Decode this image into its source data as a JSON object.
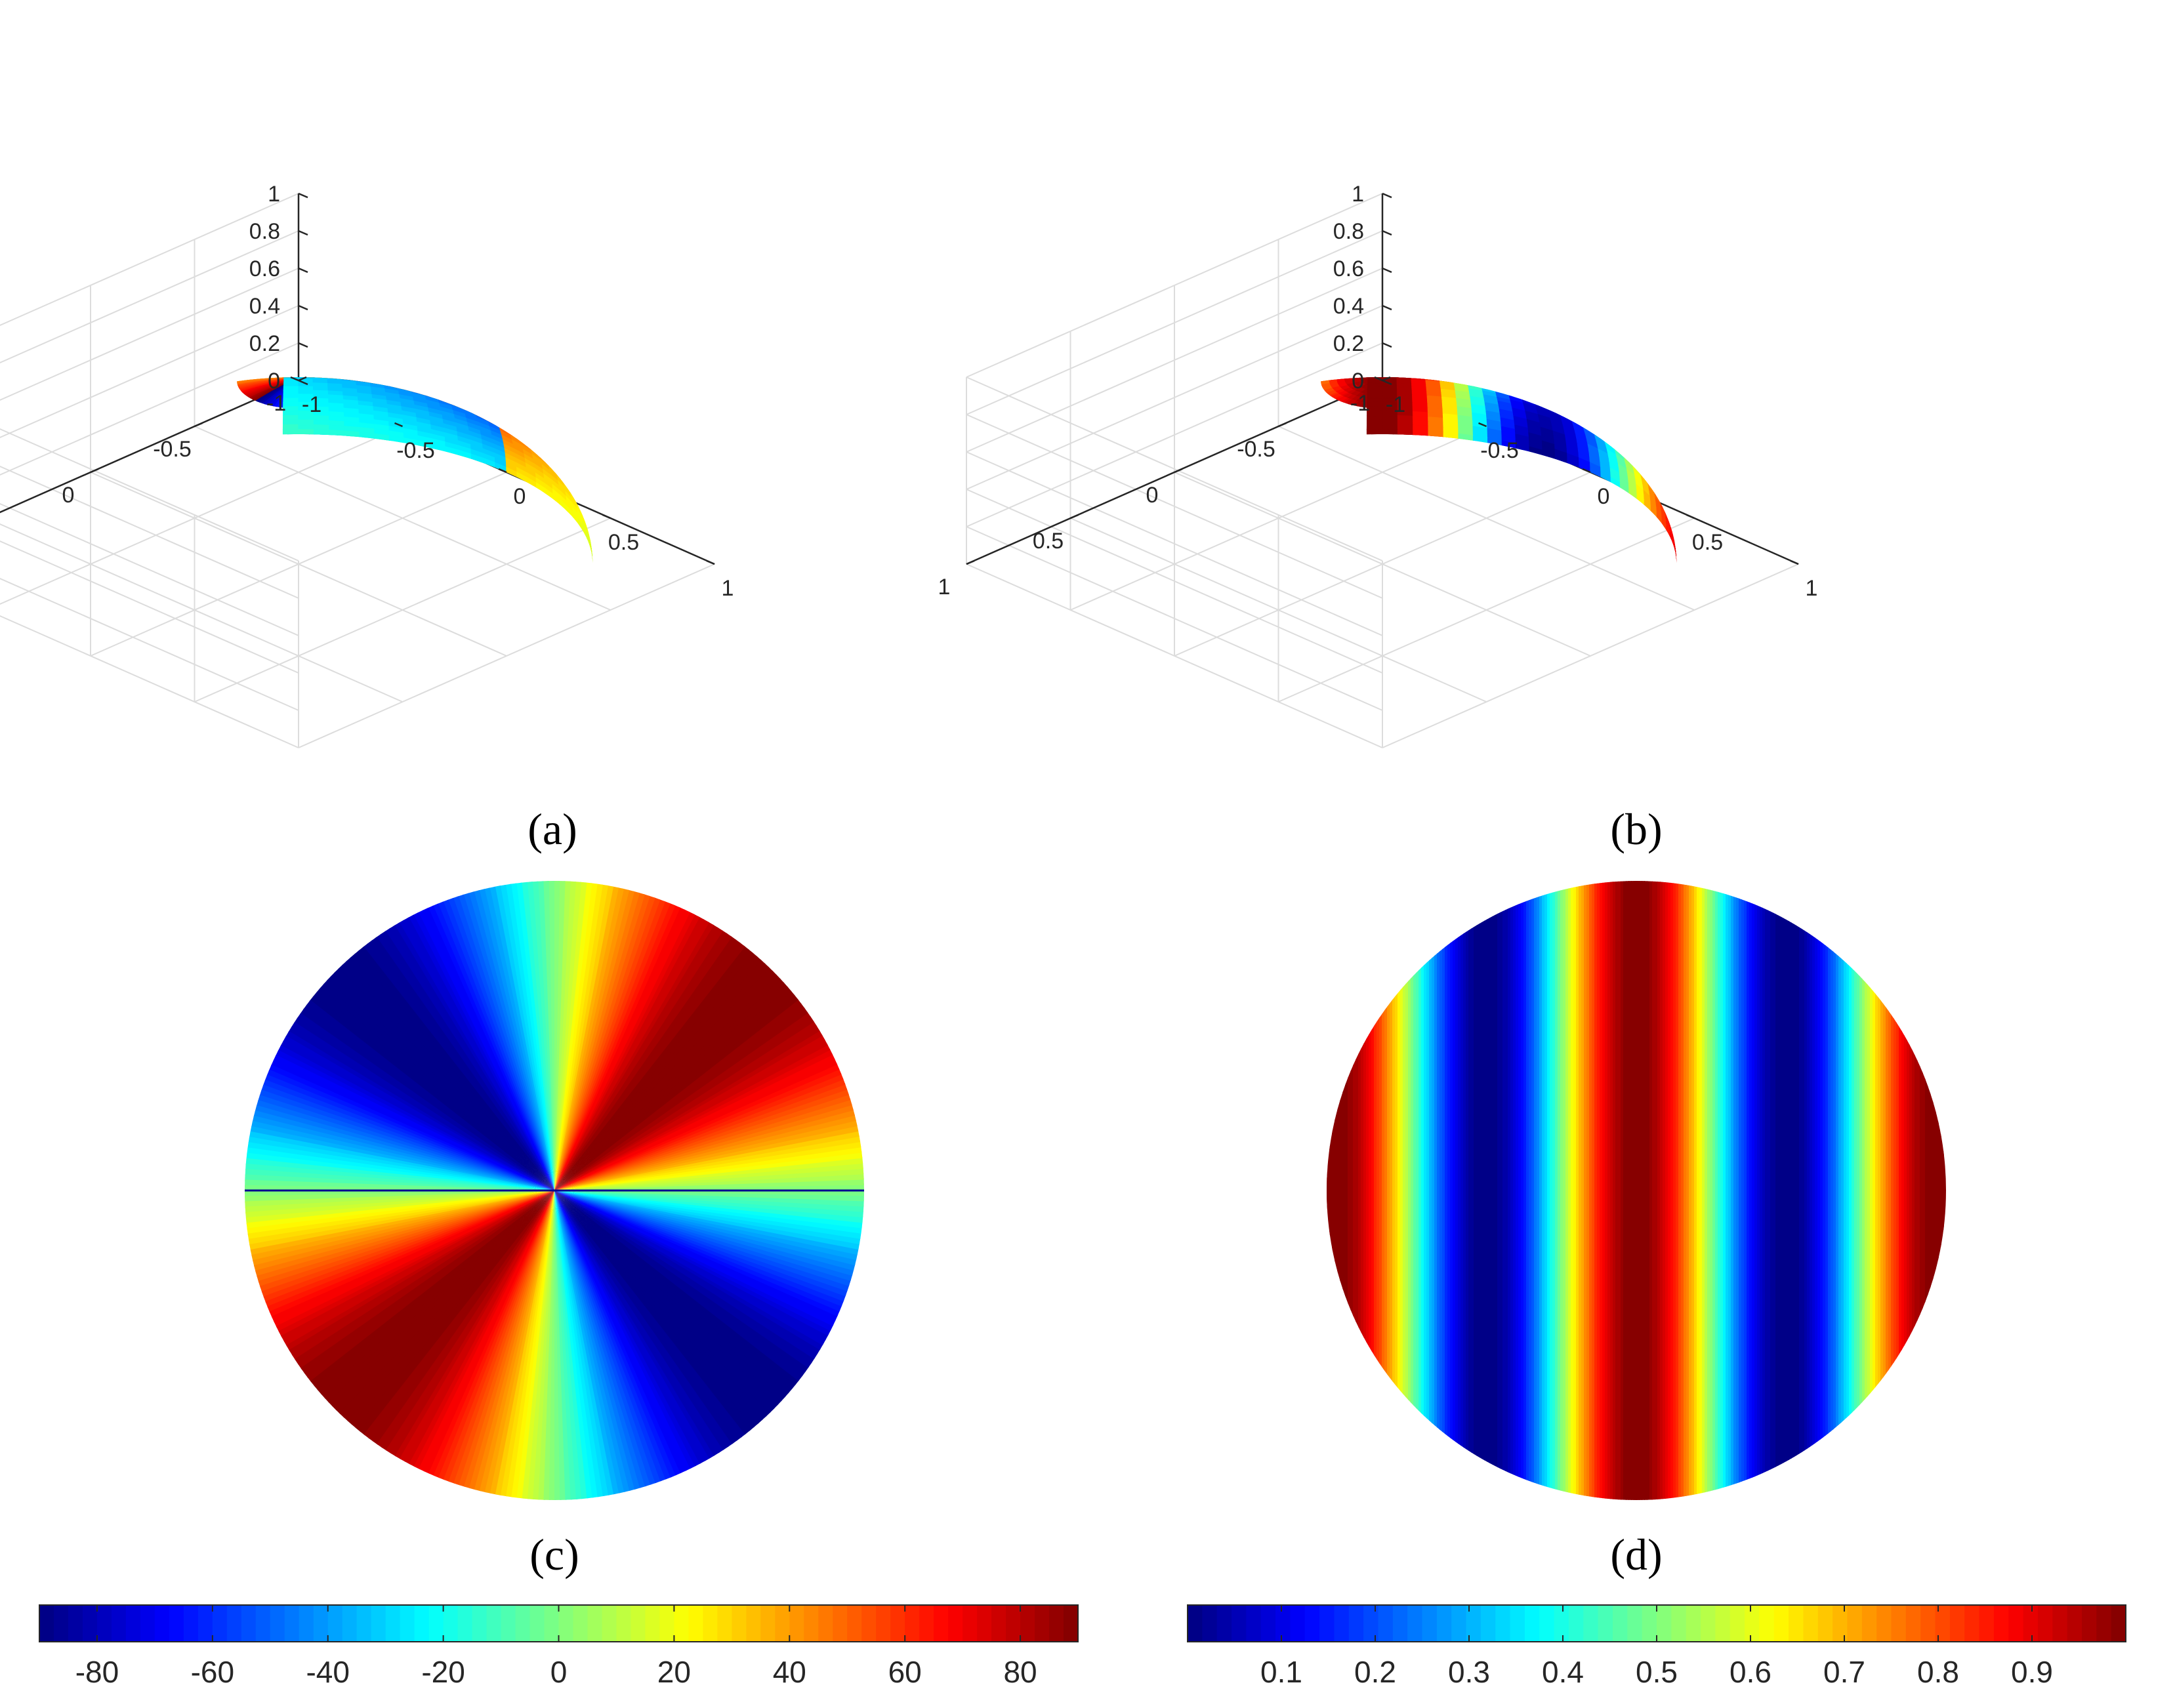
{
  "chart_data": [
    {
      "panel": "a",
      "type": "surface3d",
      "caption": "(a)",
      "surface": "upper unit hemisphere",
      "zticks": [
        "0",
        "0.2",
        "0.4",
        "0.6",
        "0.8",
        "1"
      ],
      "xticks": [
        "-1",
        "-0.5",
        "0",
        "0.5",
        "1"
      ],
      "yticks": [
        "1",
        "0.5",
        "0",
        "-0.5",
        "-1"
      ],
      "zlim": [
        0,
        1
      ],
      "xlim": [
        -1,
        1
      ],
      "ylim": [
        -1,
        1
      ],
      "grid": true,
      "colormap": "jet",
      "clim": [
        -90,
        90
      ],
      "quantity": "azimuth-based angle (wraps from +90 to -90)"
    },
    {
      "panel": "b",
      "type": "surface3d",
      "caption": "(b)",
      "surface": "upper unit hemisphere",
      "zticks": [
        "0",
        "0.2",
        "0.4",
        "0.6",
        "0.8",
        "1"
      ],
      "xticks": [
        "-1",
        "-0.5",
        "0",
        "0.5",
        "1"
      ],
      "yticks": [
        "1",
        "0.5",
        "0",
        "-0.5",
        "-1"
      ],
      "zlim": [
        0,
        1
      ],
      "xlim": [
        -1,
        1
      ],
      "ylim": [
        -1,
        1
      ],
      "grid": true,
      "colormap": "jet",
      "clim": [
        0,
        1
      ],
      "quantity": "magnitude varying across the hemisphere (max on one side, min on the opposite)"
    },
    {
      "panel": "c",
      "type": "heatmap",
      "caption": "(c)",
      "view": "top-down unit disk",
      "colormap": "jet",
      "clim": [
        -90,
        90
      ],
      "pattern": "angular: discontinuity along horizontal diameter"
    },
    {
      "panel": "d",
      "type": "heatmap",
      "caption": "(d)",
      "view": "top-down unit disk",
      "colormap": "jet",
      "clim": [
        0,
        1
      ],
      "pattern": "vertical bands, peak at centre column"
    }
  ],
  "colorbars": [
    {
      "name": "colorbar-angle",
      "colormap": "jet",
      "range": [
        -90,
        90
      ],
      "levels": 72,
      "ticks": [
        "-80",
        "-60",
        "-40",
        "-20",
        "0",
        "20",
        "40",
        "60",
        "80"
      ],
      "tick_values": [
        -80,
        -60,
        -40,
        -20,
        0,
        20,
        40,
        60,
        80
      ]
    },
    {
      "name": "colorbar-magnitude",
      "colormap": "jet",
      "range": [
        0,
        1
      ],
      "levels": 64,
      "ticks": [
        "0.1",
        "0.2",
        "0.3",
        "0.4",
        "0.5",
        "0.6",
        "0.7",
        "0.8",
        "0.9"
      ],
      "tick_values": [
        0.1,
        0.2,
        0.3,
        0.4,
        0.5,
        0.6,
        0.7,
        0.8,
        0.9
      ]
    }
  ],
  "colors": {
    "axis": "#262626",
    "grid": "#dcdcdc",
    "jet_stops": [
      "#00008f",
      "#0000ff",
      "#00ffff",
      "#80ff80",
      "#ffff00",
      "#ff0000",
      "#800000"
    ]
  }
}
